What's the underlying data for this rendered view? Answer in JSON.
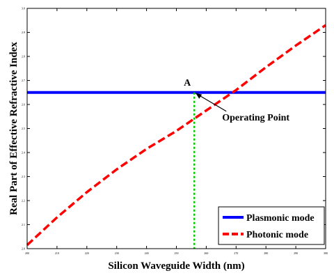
{
  "chart_data": {
    "type": "line",
    "title": "",
    "xlabel": "Silicon Waveguide Width (nm)",
    "ylabel": "Real Part of Effective Refractive Index",
    "xlim": [
      200,
      300
    ],
    "ylim": [
      2.0,
      3.0
    ],
    "xticks": [
      200,
      210,
      220,
      230,
      240,
      250,
      260,
      270,
      280,
      290,
      300
    ],
    "yticks": [
      2.0,
      2.1,
      2.2,
      2.3,
      2.4,
      2.5,
      2.6,
      2.7,
      2.8,
      2.9,
      3.0
    ],
    "grid": false,
    "legend_position": "bottom-right",
    "series": [
      {
        "name": "Plasmonic mode",
        "color": "#0000ff",
        "style": "solid",
        "x": [
          200,
          300
        ],
        "y": [
          2.65,
          2.65
        ]
      },
      {
        "name": "Photonic mode",
        "color": "#ff0000",
        "style": "dashed",
        "x": [
          200,
          210,
          220,
          230,
          240,
          250,
          260,
          270,
          280,
          290,
          300
        ],
        "y": [
          2.015,
          2.13,
          2.235,
          2.33,
          2.415,
          2.49,
          2.575,
          2.66,
          2.755,
          2.845,
          2.93
        ]
      }
    ],
    "annotations": {
      "point_label": "A",
      "operating_point_label": "Operating Point",
      "operating_point_x": 256
    },
    "colors": {
      "vertical_marker": "#00cc00"
    }
  }
}
